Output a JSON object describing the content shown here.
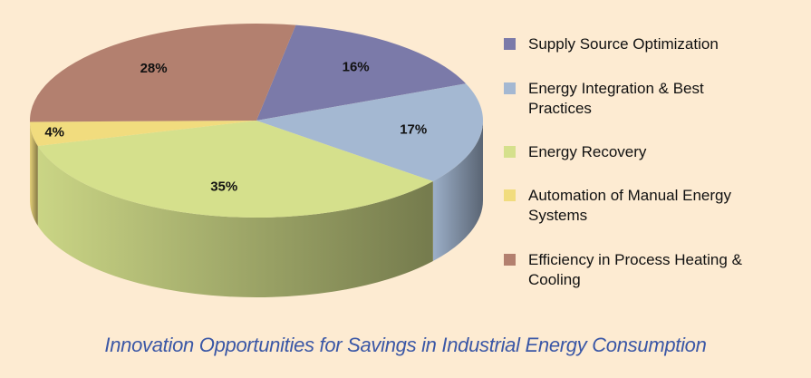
{
  "chart_data": {
    "type": "pie",
    "title": "Innovation Opportunities for Savings in Industrial Energy Consumption",
    "categories": [
      "Supply Source Optimization",
      "Energy Integration & Best Practices",
      "Energy Recovery",
      "Automation of Manual Energy Systems",
      "Efficiency in Process Heating & Cooling"
    ],
    "values": [
      16,
      17,
      35,
      4,
      28
    ],
    "value_labels": [
      "16%",
      "17%",
      "35%",
      "4%",
      "28%"
    ],
    "colors": [
      "#7b7aa9",
      "#a4b8d2",
      "#d5e08c",
      "#f1dc7e",
      "#b3806f"
    ],
    "legend": "right"
  }
}
